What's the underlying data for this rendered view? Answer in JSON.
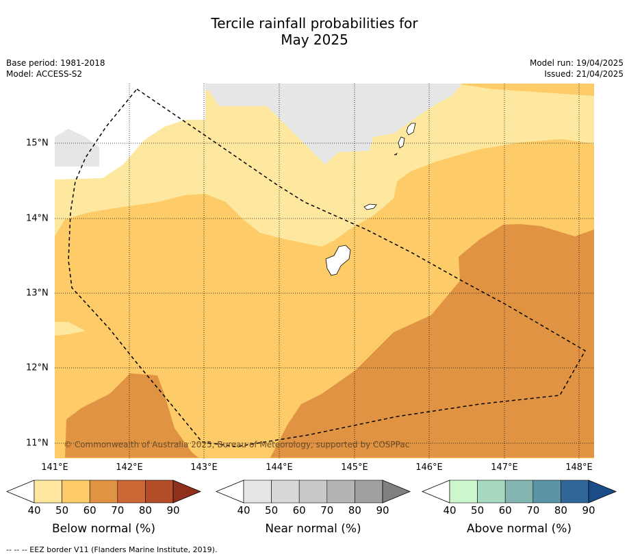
{
  "title_line1": "Tercile rainfall probabilities for",
  "title_line2": "May 2025",
  "meta": {
    "base_period": "Base period: 1981-2018",
    "model": "Model: ACCESS-S2",
    "model_run": "Model run: 19/04/2025",
    "issued": "Issued: 21/04/2025"
  },
  "map": {
    "lon_labels": [
      "141°E",
      "142°E",
      "143°E",
      "144°E",
      "145°E",
      "146°E",
      "147°E",
      "148°E"
    ],
    "lat_labels": [
      "15°N",
      "14°N",
      "13°N",
      "12°N",
      "11°N"
    ],
    "copyright": "© Commonwealth of Australia 2025, Bureau of Meteorology, supported by COSPPac",
    "colors": {
      "below_40_50": "#fee8a0",
      "below_50_60": "#fdcb67",
      "below_60_70": "#e09443",
      "near_40_50": "#e6e6e6"
    }
  },
  "colorbars": [
    {
      "title": "Below normal (%)",
      "ticks": [
        "40",
        "50",
        "60",
        "70",
        "80",
        "90"
      ],
      "colors": [
        "#ffffff",
        "#fee8a0",
        "#fdcb67",
        "#e09443",
        "#cd6735",
        "#b24d28",
        "#8f2f1c"
      ]
    },
    {
      "title": "Near normal (%)",
      "ticks": [
        "40",
        "50",
        "60",
        "70",
        "80",
        "90"
      ],
      "colors": [
        "#ffffff",
        "#e6e6e6",
        "#d8d8d8",
        "#c8c8c8",
        "#b4b4b4",
        "#a0a0a0",
        "#808080"
      ]
    },
    {
      "title": "Above normal (%)",
      "ticks": [
        "40",
        "50",
        "60",
        "70",
        "80",
        "90"
      ],
      "colors": [
        "#ffffff",
        "#ccf7cc",
        "#a6d9bf",
        "#84b5b1",
        "#5b94a4",
        "#316699",
        "#1a4d87"
      ]
    }
  ],
  "footer": "--  --  -- EEZ border V11 (Flanders Marine Institute, 2019)."
}
